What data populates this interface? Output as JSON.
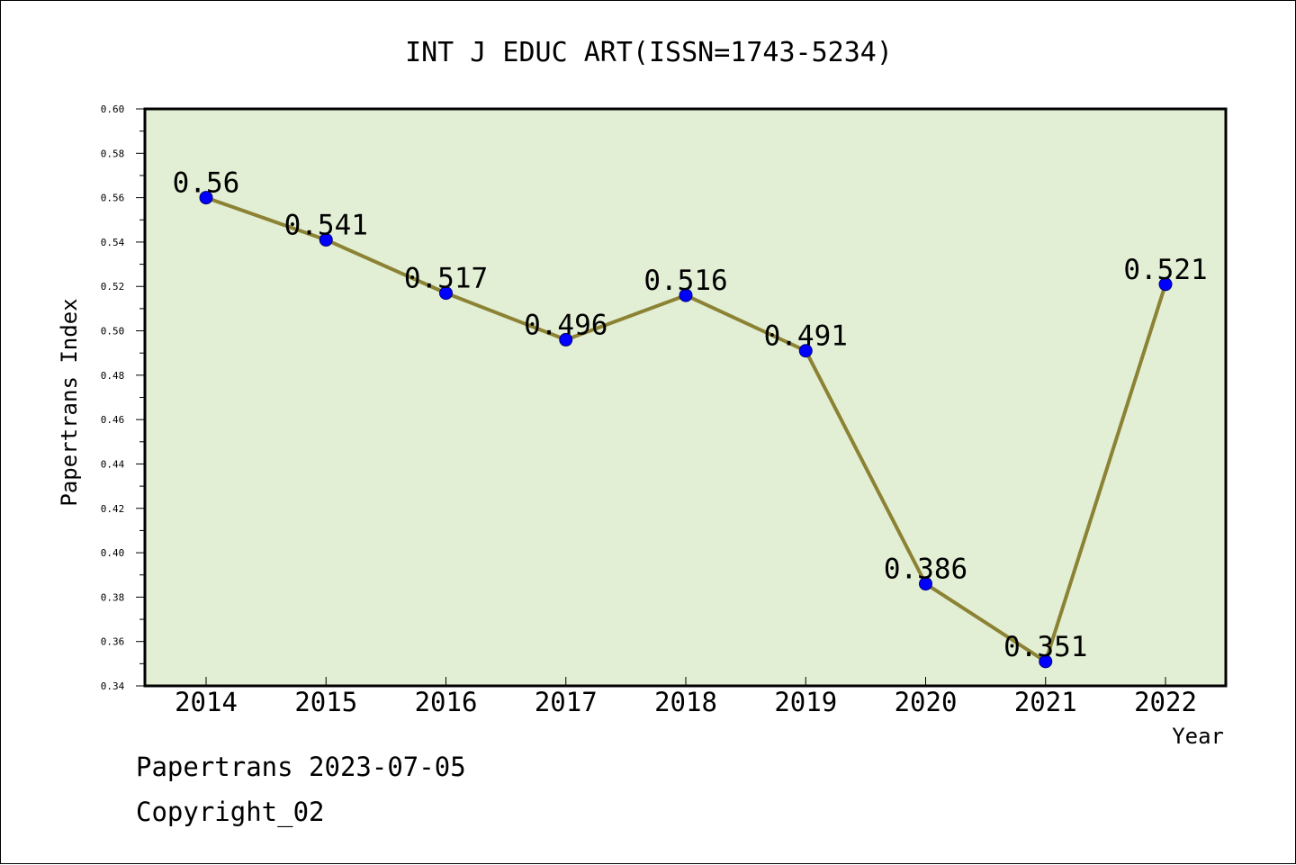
{
  "chart_data": {
    "type": "line",
    "title": "INT J EDUC ART(ISSN=1743-5234)",
    "xlabel": "Year",
    "ylabel": "Papertrans Index",
    "categories": [
      "2014",
      "2015",
      "2016",
      "2017",
      "2018",
      "2019",
      "2020",
      "2021",
      "2022"
    ],
    "series": [
      {
        "values": [
          0.56,
          0.541,
          0.517,
          0.496,
          0.516,
          0.491,
          0.386,
          0.351,
          0.521
        ],
        "labels": [
          "0.56",
          "0.541",
          "0.517",
          "0.496",
          "0.516",
          "0.491",
          "0.386",
          "0.351",
          "0.521"
        ]
      }
    ],
    "ylim": [
      0.34,
      0.6
    ],
    "yticks": [
      "0.34",
      "0.36",
      "0.38",
      "0.40",
      "0.42",
      "0.44",
      "0.46",
      "0.48",
      "0.50",
      "0.52",
      "0.54",
      "0.56",
      "0.58",
      "0.60"
    ],
    "grid": false,
    "colors": {
      "plot_background": "#e2efd4",
      "line": "#8b8234",
      "marker": "#0000ff",
      "axis": "#000000"
    }
  },
  "footer": {
    "line1": "Papertrans 2023-07-05",
    "line2": "Copyright_02"
  }
}
